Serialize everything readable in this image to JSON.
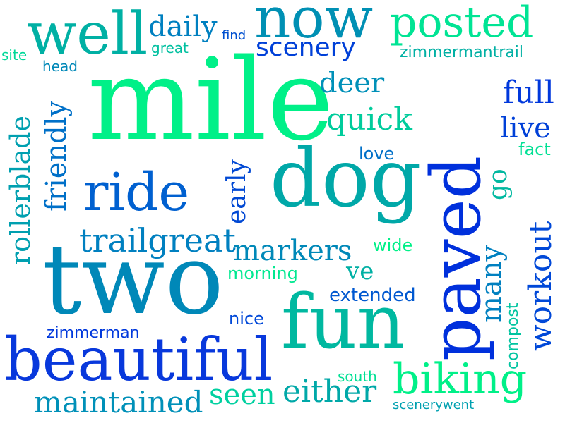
{
  "colors": {
    "background": "#ffffff",
    "palette": [
      "#00f0a0",
      "#00c8a0",
      "#00a0b0",
      "#0080c0",
      "#0050d0",
      "#0028e0"
    ]
  },
  "words": [
    {
      "text": "mile"
    },
    {
      "text": "two"
    },
    {
      "text": "paved"
    },
    {
      "text": "dog"
    },
    {
      "text": "fun"
    },
    {
      "text": "beautiful"
    },
    {
      "text": "well"
    },
    {
      "text": "now"
    },
    {
      "text": "ride"
    },
    {
      "text": "posted"
    },
    {
      "text": "biking"
    },
    {
      "text": "trailgreat"
    },
    {
      "text": "maintained"
    },
    {
      "text": "either"
    },
    {
      "text": "markers"
    },
    {
      "text": "quick"
    },
    {
      "text": "scenery"
    },
    {
      "text": "daily"
    },
    {
      "text": "deer"
    },
    {
      "text": "full"
    },
    {
      "text": "live"
    },
    {
      "text": "seen"
    },
    {
      "text": "friendly"
    },
    {
      "text": "rollerblade"
    },
    {
      "text": "workout"
    },
    {
      "text": "many"
    },
    {
      "text": "early"
    },
    {
      "text": "extended"
    },
    {
      "text": "ve"
    },
    {
      "text": "zimmermantrail"
    },
    {
      "text": "zimmerman"
    },
    {
      "text": "morning"
    },
    {
      "text": "great"
    },
    {
      "text": "find"
    },
    {
      "text": "site"
    },
    {
      "text": "head"
    },
    {
      "text": "love"
    },
    {
      "text": "fact"
    },
    {
      "text": "go"
    },
    {
      "text": "wide"
    },
    {
      "text": "nice"
    },
    {
      "text": "compost"
    },
    {
      "text": "south"
    },
    {
      "text": "scenerywent"
    }
  ]
}
